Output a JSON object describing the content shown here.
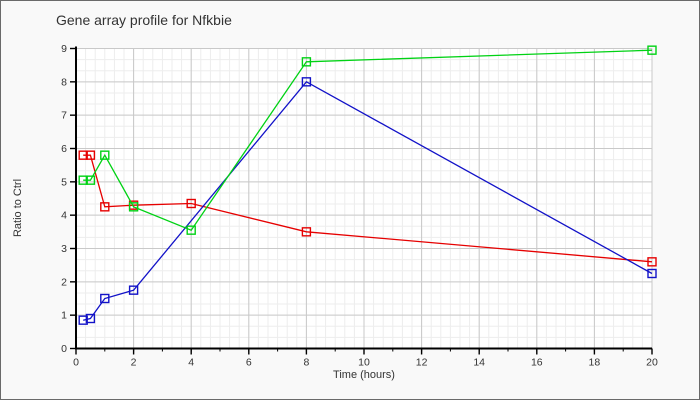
{
  "window": {
    "background": "#f9f9f9",
    "border_color": "#6a6a6a",
    "plot_background": "#ffffff"
  },
  "chart_data": {
    "type": "line",
    "title": "Gene array profile for Nfkbie",
    "xlabel": "Time (hours)",
    "ylabel": "Ratio to Ctrl",
    "xlim": [
      0,
      20
    ],
    "ylim": [
      0,
      9
    ],
    "x_ticks": [
      0,
      2,
      4,
      6,
      8,
      10,
      12,
      14,
      16,
      18,
      20
    ],
    "x_minor_tick_step": 1,
    "y_ticks": [
      0,
      1,
      2,
      3,
      4,
      5,
      6,
      7,
      8,
      9
    ],
    "grid": {
      "on": true,
      "minor_step_x": 0.33333,
      "minor_step_y": 0.33333,
      "major_color": "#c9c9c9",
      "minor_color": "#ededed"
    },
    "legend_position": "none",
    "axis_color": "#000000",
    "tick_label_color": "#333333",
    "series": [
      {
        "name": "red-series",
        "color": "#e60000",
        "marker": "open-square",
        "points": [
          [
            0.25,
            5.8
          ],
          [
            0.5,
            5.8
          ],
          [
            1,
            4.25
          ],
          [
            2,
            4.3
          ],
          [
            4,
            4.35
          ],
          [
            8,
            3.5
          ],
          [
            20,
            2.6
          ]
        ]
      },
      {
        "name": "blue-series",
        "color": "#1212c8",
        "marker": "open-square",
        "points": [
          [
            0.25,
            0.85
          ],
          [
            0.5,
            0.9
          ],
          [
            1,
            1.5
          ],
          [
            2,
            1.75
          ],
          [
            8,
            8.0
          ],
          [
            20,
            2.25
          ]
        ]
      },
      {
        "name": "green-series",
        "color": "#00d214",
        "marker": "open-square",
        "points": [
          [
            0.25,
            5.05
          ],
          [
            0.5,
            5.05
          ],
          [
            1,
            5.8
          ],
          [
            2,
            4.25
          ],
          [
            4,
            3.55
          ],
          [
            8,
            8.6
          ],
          [
            20,
            8.95
          ]
        ]
      }
    ]
  }
}
